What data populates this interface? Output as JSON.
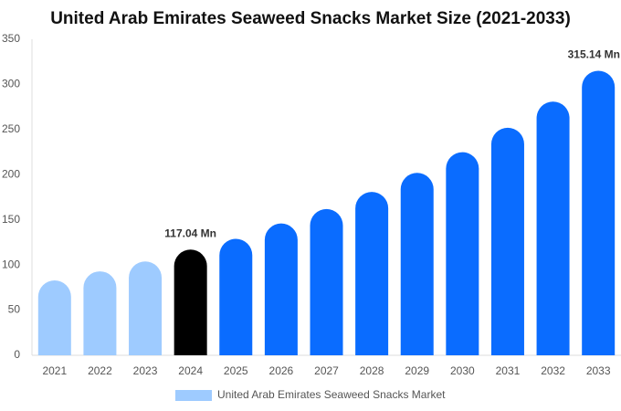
{
  "chart_data": {
    "type": "bar",
    "title": "United Arab Emirates Seaweed Snacks Market Size (2021-2033)",
    "categories": [
      "2021",
      "2022",
      "2023",
      "2024",
      "2025",
      "2026",
      "2027",
      "2028",
      "2029",
      "2030",
      "2031",
      "2032",
      "2033"
    ],
    "series": [
      {
        "name": "United Arab Emirates Seaweed Snacks Market",
        "color": "#9ecbff",
        "values": [
          83,
          93,
          104,
          117.04,
          129,
          146,
          162,
          181,
          202,
          225,
          252,
          281,
          315.14
        ],
        "value_labels": [
          null,
          null,
          null,
          "117.04 Mn",
          null,
          null,
          null,
          null,
          null,
          null,
          null,
          null,
          "315.14 Mn"
        ],
        "colors": [
          "#9ecbff",
          "#9ecbff",
          "#9ecbff",
          "#000000",
          "#0a6cff",
          "#0a6cff",
          "#0a6cff",
          "#0a6cff",
          "#0a6cff",
          "#0a6cff",
          "#0a6cff",
          "#0a6cff",
          "#0a6cff"
        ]
      }
    ],
    "ylim": [
      0,
      350
    ],
    "yticks": [
      0,
      50,
      100,
      150,
      200,
      250,
      300,
      350
    ],
    "grid": false
  }
}
